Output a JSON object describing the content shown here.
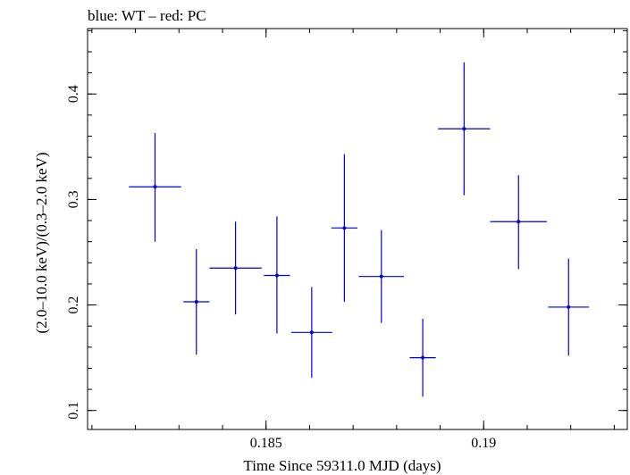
{
  "chart_data": {
    "type": "scatter",
    "title": "blue: WT – red: PC",
    "xlabel": "Time Since 59311.0 MJD (days)",
    "ylabel": "(2.0–10.0 keV)/(0.3–2.0 keV)",
    "xlim": [
      0.1809,
      0.1933
    ],
    "ylim": [
      0.082,
      0.462
    ],
    "xticks": [
      0.185,
      0.19
    ],
    "xtick_labels": [
      "0.185",
      "0.19"
    ],
    "yticks": [
      0.1,
      0.2,
      0.3,
      0.4
    ],
    "ytick_labels": [
      "0.1",
      "0.2",
      "0.3",
      "0.4"
    ],
    "grid": false,
    "series": [
      {
        "name": "WT",
        "color": "#0000dd",
        "points": [
          {
            "x": 0.18245,
            "y": 0.312,
            "xerr": 0.0006,
            "ylo": 0.26,
            "yhi": 0.363
          },
          {
            "x": 0.1834,
            "y": 0.203,
            "xerr": 0.0003,
            "ylo": 0.153,
            "yhi": 0.253
          },
          {
            "x": 0.1843,
            "y": 0.235,
            "xerr": 0.0006,
            "ylo": 0.191,
            "yhi": 0.279
          },
          {
            "x": 0.18525,
            "y": 0.228,
            "xerr": 0.0003,
            "ylo": 0.173,
            "yhi": 0.284
          },
          {
            "x": 0.18605,
            "y": 0.174,
            "xerr": 0.00047,
            "ylo": 0.131,
            "yhi": 0.217
          },
          {
            "x": 0.1868,
            "y": 0.273,
            "xerr": 0.0003,
            "ylo": 0.203,
            "yhi": 0.343
          },
          {
            "x": 0.18765,
            "y": 0.227,
            "xerr": 0.00052,
            "ylo": 0.183,
            "yhi": 0.271
          },
          {
            "x": 0.1886,
            "y": 0.15,
            "xerr": 0.0003,
            "ylo": 0.113,
            "yhi": 0.187
          },
          {
            "x": 0.18955,
            "y": 0.367,
            "xerr": 0.0006,
            "ylo": 0.304,
            "yhi": 0.43
          },
          {
            "x": 0.1908,
            "y": 0.279,
            "xerr": 0.00065,
            "ylo": 0.234,
            "yhi": 0.323
          },
          {
            "x": 0.19195,
            "y": 0.198,
            "xerr": 0.00047,
            "ylo": 0.152,
            "yhi": 0.244
          }
        ]
      }
    ]
  }
}
